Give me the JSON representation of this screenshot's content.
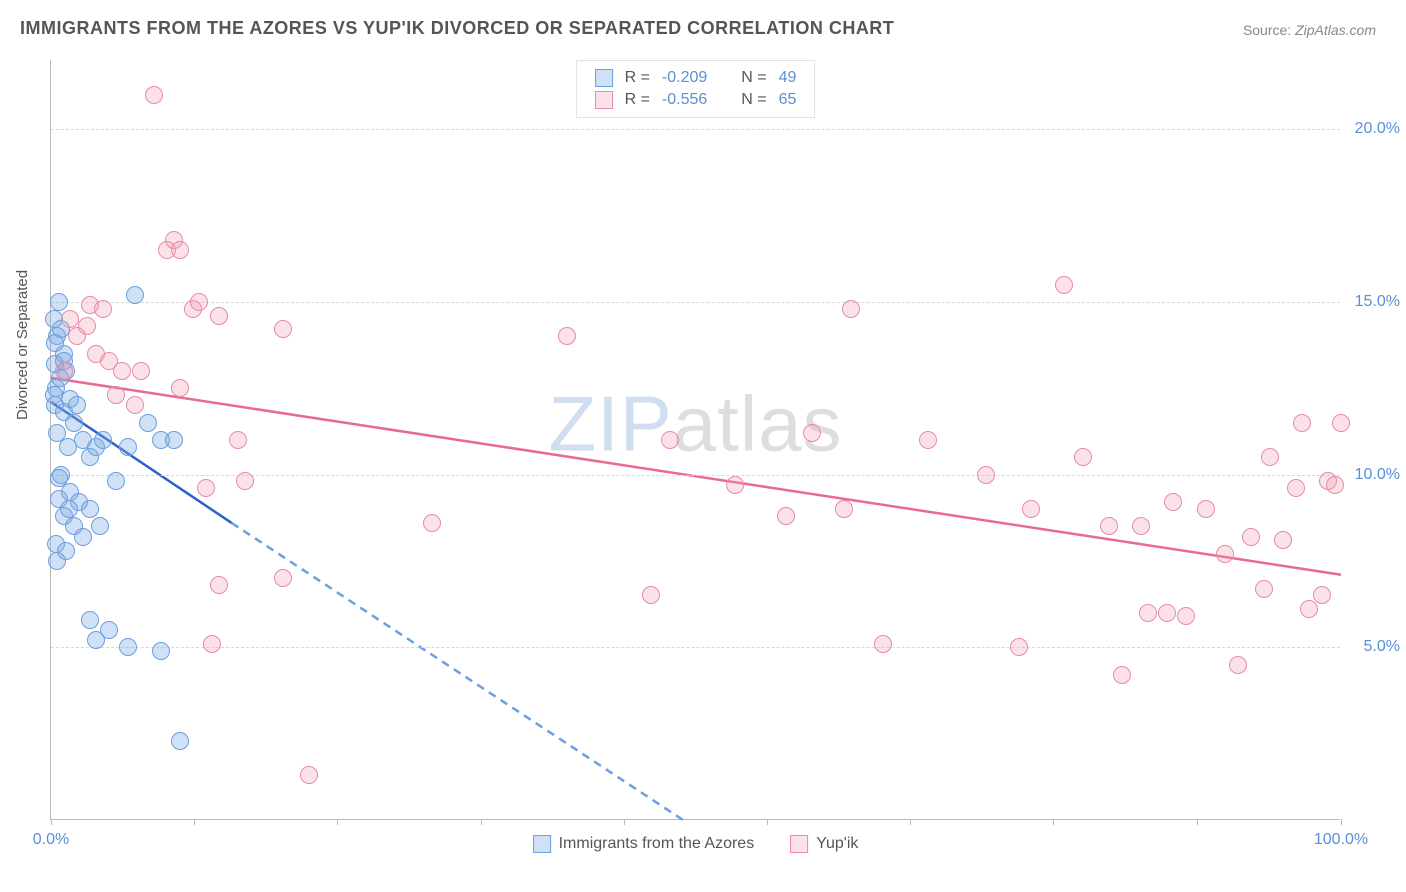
{
  "title": "IMMIGRANTS FROM THE AZORES VS YUP'IK DIVORCED OR SEPARATED CORRELATION CHART",
  "source_label": "Source:",
  "source_value": "ZipAtlas.com",
  "y_axis_title": "Divorced or Separated",
  "watermark_zip": "ZIP",
  "watermark_atlas": "atlas",
  "chart": {
    "type": "scatter",
    "xlim": [
      0,
      100
    ],
    "ylim": [
      0,
      22
    ],
    "x_ticks": [
      0,
      11.1,
      22.2,
      33.3,
      44.4,
      55.5,
      66.6,
      77.7,
      88.8,
      100
    ],
    "x_tick_labels": {
      "0": "0.0%",
      "100": "100.0%"
    },
    "y_ticks": [
      5,
      10,
      15,
      20
    ],
    "y_tick_labels": [
      "5.0%",
      "10.0%",
      "15.0%",
      "20.0%"
    ],
    "background_color": "#ffffff",
    "grid_color": "#d8d8d8",
    "marker_size": 18,
    "series": [
      {
        "name": "Immigrants from the Azores",
        "fill": "rgba(123,170,227,0.35)",
        "stroke": "#6a9fe0",
        "line_color": "#2b62c9",
        "line_dash_color": "#6a9fe0",
        "R": "-0.209",
        "N": "49",
        "trend_solid": {
          "x1": 0,
          "y1": 12.1,
          "x2": 14,
          "y2": 8.6
        },
        "trend_dash": {
          "x1": 14,
          "y1": 8.6,
          "x2": 49,
          "y2": 0
        },
        "points": [
          [
            0.2,
            14.5
          ],
          [
            0.5,
            14.0
          ],
          [
            0.3,
            13.8
          ],
          [
            0.6,
            15.0
          ],
          [
            0.8,
            14.2
          ],
          [
            1.0,
            13.5
          ],
          [
            1.2,
            13.0
          ],
          [
            0.4,
            12.5
          ],
          [
            0.7,
            12.8
          ],
          [
            1.5,
            12.2
          ],
          [
            0.3,
            12.0
          ],
          [
            1.0,
            11.8
          ],
          [
            1.8,
            11.5
          ],
          [
            2.0,
            12.0
          ],
          [
            2.5,
            11.0
          ],
          [
            0.5,
            11.2
          ],
          [
            1.3,
            10.8
          ],
          [
            3.0,
            10.5
          ],
          [
            3.5,
            10.8
          ],
          [
            4.0,
            11.0
          ],
          [
            5.0,
            9.8
          ],
          [
            6.0,
            10.8
          ],
          [
            7.5,
            11.5
          ],
          [
            8.5,
            11.0
          ],
          [
            9.5,
            11.0
          ],
          [
            0.8,
            10.0
          ],
          [
            1.5,
            9.5
          ],
          [
            2.2,
            9.2
          ],
          [
            3.0,
            9.0
          ],
          [
            0.6,
            9.3
          ],
          [
            1.0,
            8.8
          ],
          [
            1.8,
            8.5
          ],
          [
            2.5,
            8.2
          ],
          [
            3.8,
            8.5
          ],
          [
            0.4,
            8.0
          ],
          [
            1.2,
            7.8
          ],
          [
            0.5,
            7.5
          ],
          [
            4.5,
            5.5
          ],
          [
            6.0,
            5.0
          ],
          [
            3.5,
            5.2
          ],
          [
            3.0,
            5.8
          ],
          [
            8.5,
            4.9
          ],
          [
            10.0,
            2.3
          ],
          [
            6.5,
            15.2
          ],
          [
            0.3,
            13.2
          ],
          [
            1.0,
            13.3
          ],
          [
            0.6,
            9.9
          ],
          [
            1.4,
            9.0
          ],
          [
            0.2,
            12.3
          ]
        ]
      },
      {
        "name": "Yup'ik",
        "fill": "rgba(240,160,180,0.30)",
        "stroke": "#e88ba5",
        "line_color": "#e86a8f",
        "R": "-0.556",
        "N": "65",
        "trend_solid": {
          "x1": 0,
          "y1": 12.8,
          "x2": 100,
          "y2": 7.1
        },
        "points": [
          [
            1.5,
            14.5
          ],
          [
            2.0,
            14.0
          ],
          [
            3.5,
            13.5
          ],
          [
            4.0,
            14.8
          ],
          [
            5.5,
            13.0
          ],
          [
            8.0,
            21.0
          ],
          [
            9.0,
            16.5
          ],
          [
            9.5,
            16.8
          ],
          [
            10.0,
            16.5
          ],
          [
            11.0,
            14.8
          ],
          [
            13.0,
            14.6
          ],
          [
            18.0,
            14.2
          ],
          [
            14.5,
            11.0
          ],
          [
            10.0,
            12.5
          ],
          [
            12.0,
            9.6
          ],
          [
            15.0,
            9.8
          ],
          [
            18.0,
            7.0
          ],
          [
            13.0,
            6.8
          ],
          [
            12.5,
            5.1
          ],
          [
            20.0,
            1.3
          ],
          [
            29.5,
            8.6
          ],
          [
            40.0,
            14.0
          ],
          [
            46.5,
            6.5
          ],
          [
            48.0,
            11.0
          ],
          [
            53.0,
            9.7
          ],
          [
            57.0,
            8.8
          ],
          [
            59.0,
            11.2
          ],
          [
            62.0,
            14.8
          ],
          [
            61.5,
            9.0
          ],
          [
            64.5,
            5.1
          ],
          [
            68.0,
            11.0
          ],
          [
            72.5,
            10.0
          ],
          [
            75.0,
            5.0
          ],
          [
            76.0,
            9.0
          ],
          [
            78.5,
            15.5
          ],
          [
            80.0,
            10.5
          ],
          [
            82.0,
            8.5
          ],
          [
            83.0,
            4.2
          ],
          [
            84.5,
            8.5
          ],
          [
            85.0,
            6.0
          ],
          [
            86.5,
            6.0
          ],
          [
            88.0,
            5.9
          ],
          [
            87.0,
            9.2
          ],
          [
            89.5,
            9.0
          ],
          [
            91.0,
            7.7
          ],
          [
            92.0,
            4.5
          ],
          [
            93.0,
            8.2
          ],
          [
            94.0,
            6.7
          ],
          [
            94.5,
            10.5
          ],
          [
            95.5,
            8.1
          ],
          [
            96.5,
            9.6
          ],
          [
            97.0,
            11.5
          ],
          [
            97.5,
            6.1
          ],
          [
            98.5,
            6.5
          ],
          [
            99.0,
            9.8
          ],
          [
            99.5,
            9.7
          ],
          [
            100.0,
            11.5
          ],
          [
            4.5,
            13.3
          ],
          [
            6.5,
            12.0
          ],
          [
            2.8,
            14.3
          ],
          [
            1.0,
            13.0
          ],
          [
            3.0,
            14.9
          ],
          [
            7.0,
            13.0
          ],
          [
            11.5,
            15.0
          ],
          [
            5.0,
            12.3
          ]
        ]
      }
    ]
  },
  "legend": {
    "r_label": "R =",
    "n_label": "N ="
  }
}
